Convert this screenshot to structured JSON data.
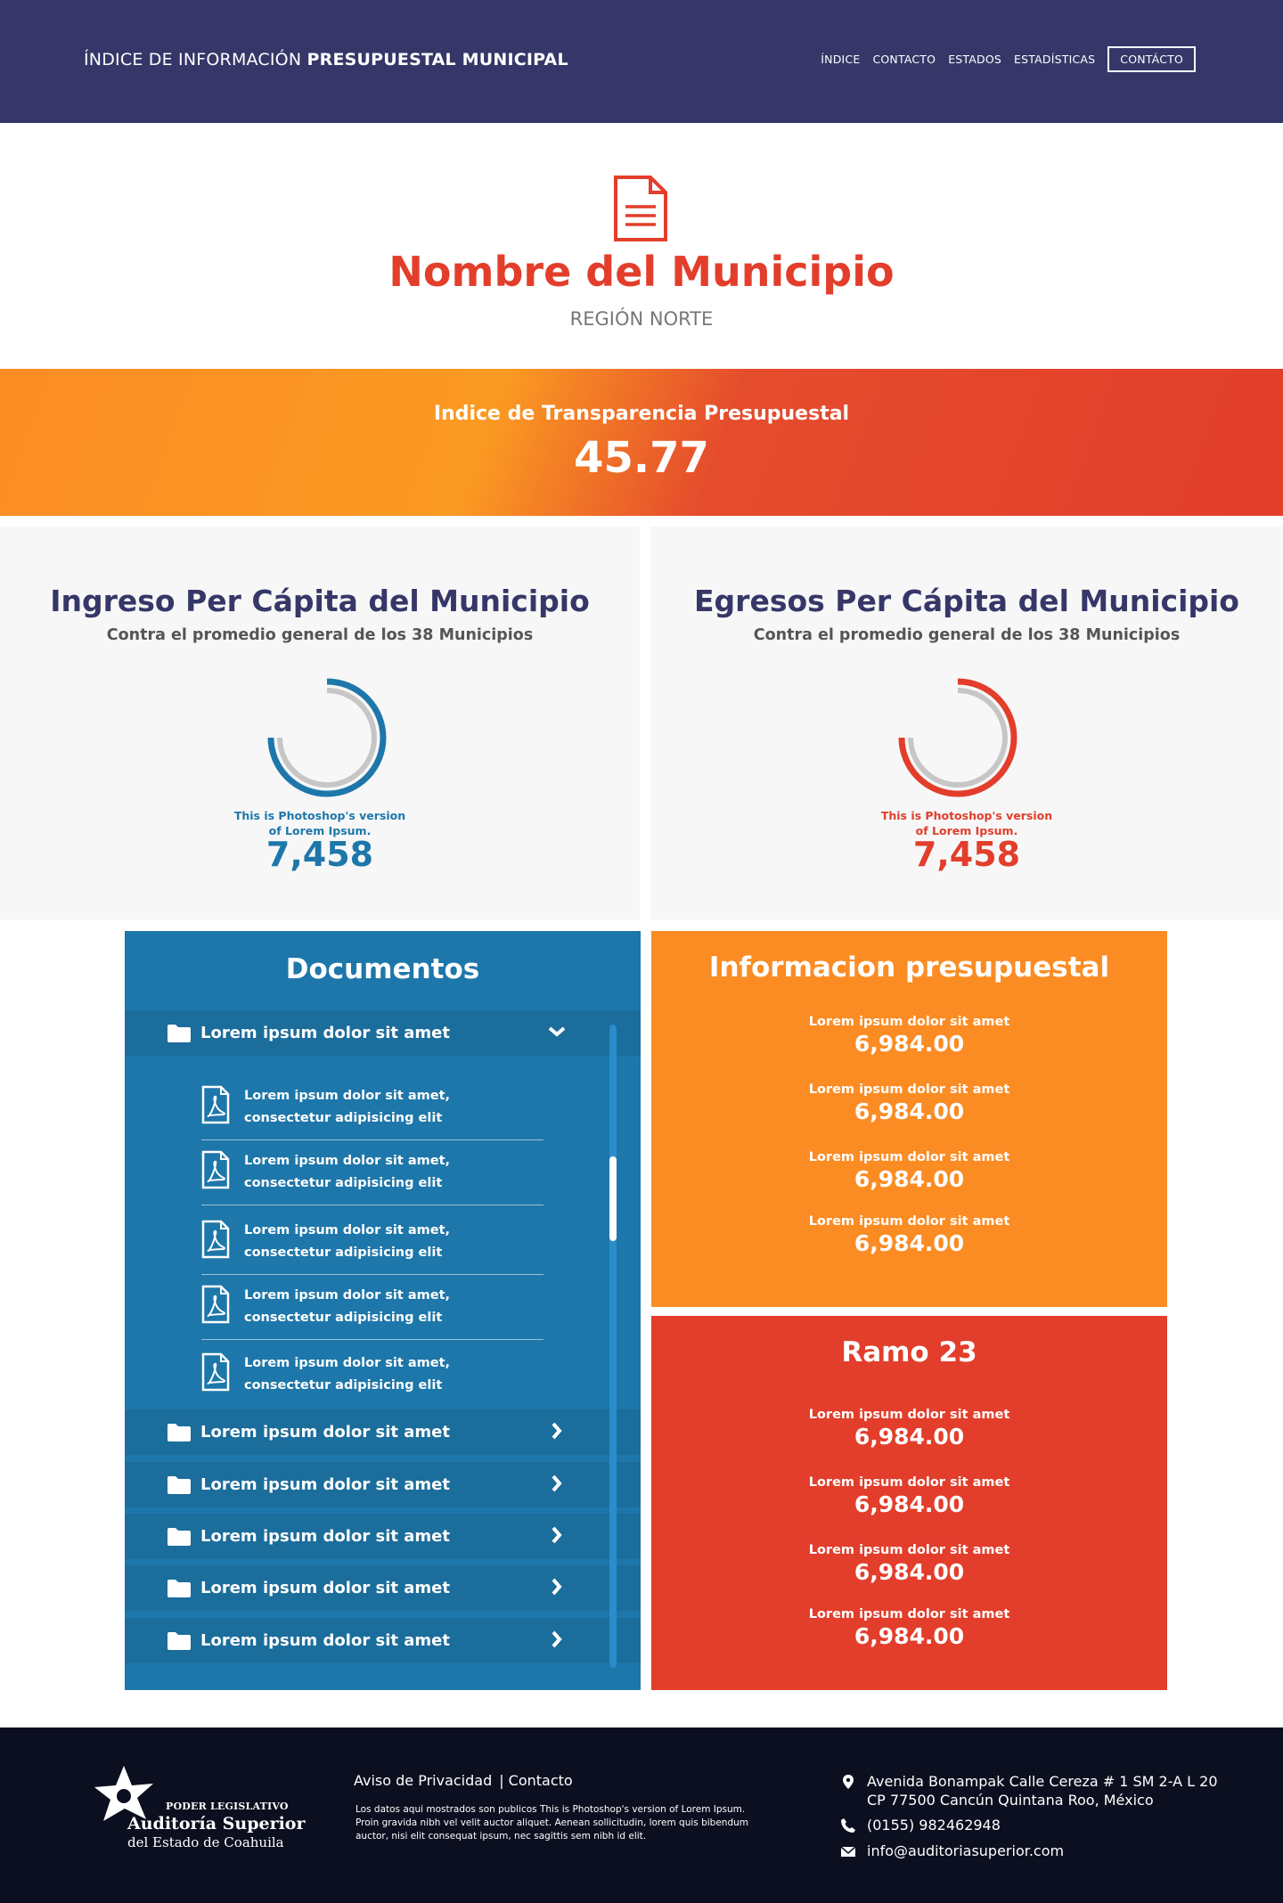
{
  "header": {
    "brand_regular": "ÍNDICE DE INFORMACIÓN",
    "brand_bold": "PRESUPUESTAL MUNICIPAL",
    "nav": [
      "ÍNDICE",
      "CONTACTO",
      "ESTADOS",
      "ESTADÍSTICAS"
    ],
    "cta": "CONTÁCTO"
  },
  "hero": {
    "name": "Nombre del Municipio",
    "region": "REGIÓN NORTE",
    "icon": "document-icon",
    "color": "#e23e2b"
  },
  "banner": {
    "title": "Indice de Transparencia Presupuestal",
    "value": "45.77"
  },
  "per_capita": [
    {
      "title": "Ingreso Per Cápita del Municipio",
      "subtitle": "Contra el promedio general de los 38 Municipios",
      "caption_line1": "This is Photoshop's version",
      "caption_line2": "of Lorem Ipsum.",
      "value": "7,458",
      "color": "#1e77aa"
    },
    {
      "title": "Egresos Per Cápita del Municipio",
      "subtitle": "Contra el promedio general de los 38 Municipios",
      "caption_line1": "This is Photoshop's version",
      "caption_line2": "of Lorem Ipsum.",
      "value": "7,458",
      "color": "#e23e2b"
    }
  ],
  "documents": {
    "title": "Documentos",
    "folders": [
      {
        "label": "Lorem ipsum dolor sit amet",
        "expanded": true,
        "files": [
          "Lorem ipsum dolor sit amet, consectetur adipisicing elit",
          "Lorem ipsum dolor sit amet, consectetur adipisicing elit",
          "Lorem ipsum dolor sit amet, consectetur adipisicing elit",
          "Lorem ipsum dolor sit amet, consectetur adipisicing elit",
          "Lorem ipsum dolor sit amet, consectetur adipisicing elit"
        ]
      },
      {
        "label": "Lorem ipsum dolor sit amet",
        "expanded": false
      },
      {
        "label": "Lorem ipsum dolor sit amet",
        "expanded": false
      },
      {
        "label": "Lorem ipsum dolor sit amet",
        "expanded": false
      },
      {
        "label": "Lorem ipsum dolor sit amet",
        "expanded": false
      },
      {
        "label": "Lorem ipsum dolor sit amet",
        "expanded": false
      }
    ],
    "color": "#1e77aa"
  },
  "info_presupuestal": {
    "title": "Informacion presupuestal",
    "items": [
      {
        "label": "Lorem ipsum dolor sit amet",
        "value": "6,984.00"
      },
      {
        "label": "Lorem ipsum dolor sit amet",
        "value": "6,984.00"
      },
      {
        "label": "Lorem ipsum dolor sit amet",
        "value": "6,984.00"
      },
      {
        "label": "Lorem ipsum dolor sit amet",
        "value": "6,984.00"
      }
    ],
    "color": "#fb8c24"
  },
  "ramo23": {
    "title": "Ramo 23",
    "items": [
      {
        "label": "Lorem ipsum dolor sit amet",
        "value": "6,984.00"
      },
      {
        "label": "Lorem ipsum dolor sit amet",
        "value": "6,984.00"
      },
      {
        "label": "Lorem ipsum dolor sit amet",
        "value": "6,984.00"
      },
      {
        "label": "Lorem ipsum dolor sit amet",
        "value": "6,984.00"
      }
    ],
    "color": "#e23e2b"
  },
  "footer": {
    "logo_line1": "PODER LEGISLATIVO",
    "logo_line2": "Auditoría Superior",
    "logo_line3": "del Estado de Coahuila",
    "link_privacy": "Aviso de Privacidad",
    "link_separator": "|",
    "link_contact": "Contacto",
    "disclaimer": "Los datos aqui mostrados son publicos This is Photoshop's version  of Lorem Ipsum. Proin gravida nibh vel velit auctor aliquet. Aenean sollicitudin, lorem quis bibendum auctor, nisi elit consequat ipsum, nec sagittis sem nibh id elit.",
    "address_line1": "Avenida Bonampak Calle Cereza # 1 SM 2-A L 20",
    "address_line2": "CP 77500 Cancún Quintana Roo, México",
    "phone": "(0155) 982462948",
    "email": "info@auditoriasuperior.com"
  }
}
